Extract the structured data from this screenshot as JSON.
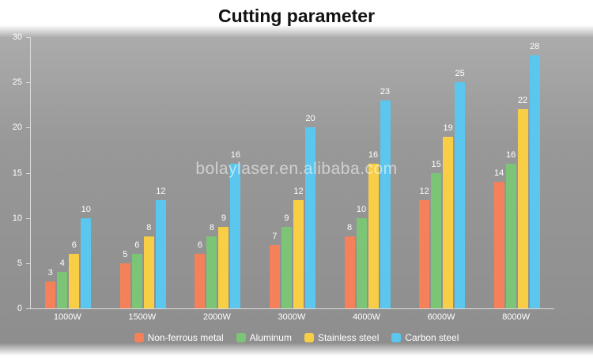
{
  "title": "Cutting parameter",
  "watermark": "bolaylaser.en.alibaba.com",
  "chart_data": {
    "type": "bar",
    "title": "Cutting parameter",
    "categories": [
      "1000W",
      "1500W",
      "2000W",
      "3000W",
      "4000W",
      "6000W",
      "8000W"
    ],
    "series": [
      {
        "name": "Non-ferrous metal",
        "color": "#F4815A",
        "values": [
          3,
          5,
          6,
          7,
          8,
          12,
          14
        ]
      },
      {
        "name": "Aluminum",
        "color": "#7CC576",
        "values": [
          4,
          6,
          8,
          9,
          10,
          15,
          16
        ]
      },
      {
        "name": "Stainless steel",
        "color": "#F7CE46",
        "values": [
          6,
          8,
          9,
          12,
          16,
          19,
          22
        ]
      },
      {
        "name": "Carbon steel",
        "color": "#5BC6EE",
        "values": [
          10,
          12,
          16,
          20,
          23,
          25,
          28
        ]
      }
    ],
    "xlabel": "",
    "ylabel": "",
    "ylim": [
      0,
      30
    ],
    "yticks": [
      0,
      5,
      10,
      15,
      20,
      25,
      30
    ],
    "grid": false,
    "value_labels": true,
    "legend_position": "bottom",
    "text_color": "#ffffff",
    "axis_color": "#dcdcdc"
  }
}
